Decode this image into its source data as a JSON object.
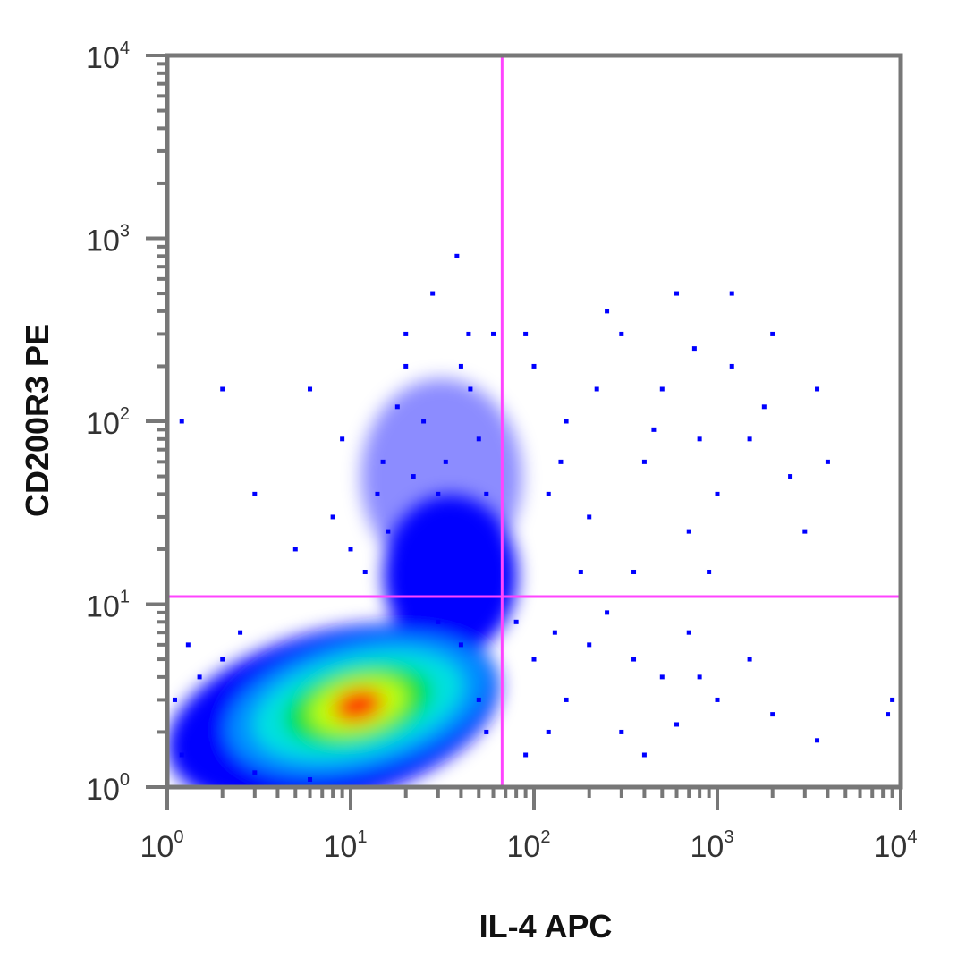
{
  "chart_data": {
    "type": "scatter",
    "subtype": "flow-cytometry-density-dot-plot",
    "xlabel": "IL-4 APC",
    "ylabel": "CD200R3 PE",
    "xscale": "log",
    "yscale": "log",
    "xlim": [
      1,
      10000
    ],
    "ylim": [
      1,
      10000
    ],
    "xticks": [
      {
        "base": "10",
        "exp": "0"
      },
      {
        "base": "10",
        "exp": "1"
      },
      {
        "base": "10",
        "exp": "2"
      },
      {
        "base": "10",
        "exp": "3"
      },
      {
        "base": "10",
        "exp": "4"
      }
    ],
    "yticks": [
      {
        "base": "10",
        "exp": "0"
      },
      {
        "base": "10",
        "exp": "1"
      },
      {
        "base": "10",
        "exp": "2"
      },
      {
        "base": "10",
        "exp": "3"
      },
      {
        "base": "10",
        "exp": "4"
      }
    ],
    "grid": false,
    "quadrant_gate": {
      "x": 67,
      "y": 11,
      "color": "#ff44ff"
    },
    "point_color": "#0000ff",
    "density_colors": [
      "#0000ff",
      "#0090ff",
      "#00e0e0",
      "#00e040",
      "#c0ff00",
      "#ff2000"
    ],
    "density_regions": [
      {
        "center": [
          11,
          2.8
        ],
        "role": "main population peak"
      },
      {
        "center": [
          35,
          18
        ],
        "role": "upper tail"
      }
    ],
    "points": [
      [
        30,
        40
      ],
      [
        25,
        100
      ],
      [
        40,
        200
      ],
      [
        15,
        60
      ],
      [
        20,
        300
      ],
      [
        45,
        150
      ],
      [
        35,
        25
      ],
      [
        8,
        30
      ],
      [
        12,
        15
      ],
      [
        50,
        80
      ],
      [
        28,
        500
      ],
      [
        38,
        800
      ],
      [
        22,
        50
      ],
      [
        60,
        300
      ],
      [
        18,
        120
      ],
      [
        5,
        20
      ],
      [
        55,
        40
      ],
      [
        42,
        20
      ],
      [
        32,
        18
      ],
      [
        26,
        15
      ],
      [
        48,
        14
      ],
      [
        10,
        20
      ],
      [
        3,
        40
      ],
      [
        2,
        150
      ],
      [
        1.2,
        100
      ],
      [
        6,
        150
      ],
      [
        14,
        40
      ],
      [
        33,
        60
      ],
      [
        44,
        300
      ],
      [
        20,
        200
      ],
      [
        9,
        80
      ],
      [
        16,
        25
      ],
      [
        100,
        200
      ],
      [
        150,
        100
      ],
      [
        300,
        300
      ],
      [
        500,
        150
      ],
      [
        800,
        80
      ],
      [
        1200,
        200
      ],
      [
        2000,
        300
      ],
      [
        3500,
        150
      ],
      [
        4000,
        60
      ],
      [
        120,
        40
      ],
      [
        200,
        30
      ],
      [
        400,
        60
      ],
      [
        700,
        25
      ],
      [
        1000,
        40
      ],
      [
        1500,
        80
      ],
      [
        2500,
        50
      ],
      [
        90,
        300
      ],
      [
        250,
        400
      ],
      [
        600,
        500
      ],
      [
        1200,
        500
      ],
      [
        180,
        15
      ],
      [
        350,
        15
      ],
      [
        900,
        15
      ],
      [
        3000,
        25
      ],
      [
        140,
        60
      ],
      [
        220,
        150
      ],
      [
        450,
        90
      ],
      [
        750,
        250
      ],
      [
        1800,
        120
      ],
      [
        80,
        8
      ],
      [
        100,
        5
      ],
      [
        150,
        3
      ],
      [
        200,
        6
      ],
      [
        300,
        2
      ],
      [
        500,
        4
      ],
      [
        700,
        7
      ],
      [
        1000,
        3
      ],
      [
        1500,
        5
      ],
      [
        2000,
        2.5
      ],
      [
        3500,
        1.8
      ],
      [
        9000,
        3
      ],
      [
        8500,
        2.5
      ],
      [
        120,
        2
      ],
      [
        250,
        9
      ],
      [
        400,
        1.5
      ],
      [
        600,
        2.2
      ],
      [
        90,
        1.5
      ],
      [
        130,
        7
      ],
      [
        350,
        5
      ],
      [
        800,
        4
      ],
      [
        1.5,
        4
      ],
      [
        2,
        5
      ],
      [
        1.2,
        1.5
      ],
      [
        3,
        1.2
      ],
      [
        50,
        3
      ],
      [
        40,
        6
      ],
      [
        30,
        8
      ],
      [
        55,
        2
      ],
      [
        1.1,
        3
      ],
      [
        6,
        1.1
      ],
      [
        1.3,
        6
      ],
      [
        2.5,
        7
      ],
      [
        45,
        9
      ]
    ]
  }
}
